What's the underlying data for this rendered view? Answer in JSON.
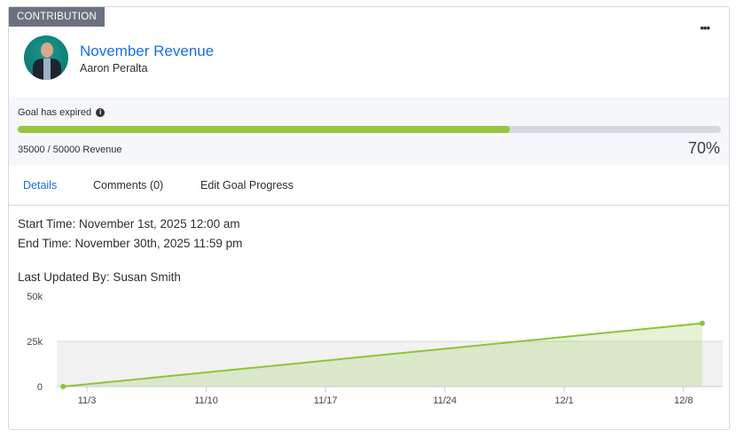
{
  "badge": "CONTRIBUTION",
  "more_label": "•••",
  "goal": {
    "title": "November Revenue",
    "owner": "Aaron Peralta"
  },
  "progress": {
    "status": "Goal has expired",
    "info_icon": "i",
    "current": 35000,
    "target": 50000,
    "amount_text": "35000 / 50000 Revenue",
    "percent": 70,
    "percent_text": "70%",
    "fill_color": "#97c53e"
  },
  "tabs": [
    {
      "label": "Details",
      "active": true
    },
    {
      "label": "Comments (0)"
    },
    {
      "label": "Edit Goal Progress"
    }
  ],
  "details": {
    "start": "Start Time: November 1st, 2025 12:00 am",
    "end": "End Time: November 30th, 2025 11:59 pm",
    "updated": "Last Updated By: Susan Smith"
  },
  "chart_data": {
    "type": "area",
    "x_unit": "days since Nov 1",
    "points": [
      {
        "x": 0.6,
        "y": 0
      },
      {
        "x": 38.1,
        "y": 35000
      }
    ],
    "xlim": [
      0.23,
      39.3
    ],
    "ylim": [
      0,
      50000
    ],
    "yticks": [
      {
        "v": 0,
        "label": "0"
      },
      {
        "v": 25000,
        "label": "25k"
      },
      {
        "v": 50000,
        "label": "50k"
      }
    ],
    "xticks": [
      {
        "v": 2,
        "label": "11/3"
      },
      {
        "v": 9,
        "label": "11/10"
      },
      {
        "v": 16,
        "label": "11/17"
      },
      {
        "v": 23,
        "label": "11/24"
      },
      {
        "v": 30,
        "label": "12/1"
      },
      {
        "v": 37,
        "label": "12/8"
      }
    ],
    "band": [
      0,
      25000
    ],
    "color": "#8fc23a"
  }
}
